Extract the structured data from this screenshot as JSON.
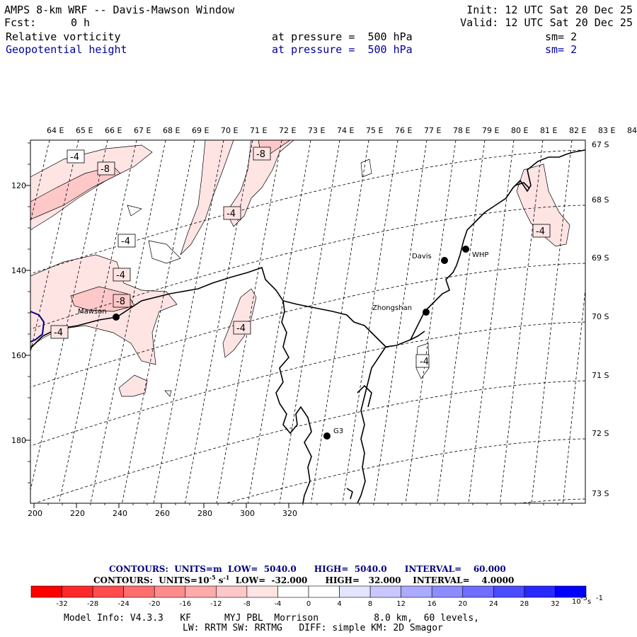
{
  "header": {
    "title": "AMPS 8-km WRF -- Davis-Mawson Window",
    "init": "Init: 12 UTC Sat 20 Dec 25",
    "fcst_label": "Fcst:",
    "fcst_value": "0 h",
    "valid": "Valid: 12 UTC Sat 20 Dec 25",
    "field1": {
      "name": "Relative vorticity",
      "level": "at pressure =  500 hPa",
      "smooth": "sm= 2"
    },
    "field2": {
      "name": "Geopotential height",
      "level": "at pressure =  500 hPa",
      "smooth": "sm= 2"
    }
  },
  "map": {
    "longitude_labels": [
      "64 E",
      "65 E",
      "66 E",
      "67 E",
      "68 E",
      "69 E",
      "70 E",
      "71 E",
      "72 E",
      "73 E",
      "74 E",
      "75 E",
      "76 E",
      "77 E",
      "78 E",
      "79 E",
      "80 E",
      "81 E",
      "82 E",
      "83 E",
      "84 E"
    ],
    "latitude_labels": [
      "67 S",
      "68 S",
      "69 S",
      "70 S",
      "71 S",
      "72 S",
      "73 S"
    ],
    "x_ticks": [
      "200",
      "220",
      "240",
      "260",
      "280",
      "300",
      "320"
    ],
    "y_ticks": [
      "120",
      "140",
      "160",
      "180"
    ],
    "stations": [
      {
        "name": "Mawson"
      },
      {
        "name": "Davis"
      },
      {
        "name": "WHP"
      },
      {
        "name": "Zhongshan"
      },
      {
        "name": "G3"
      }
    ],
    "contour_labels": [
      "-4",
      "-8",
      "-8",
      "-4",
      "-4",
      "-4",
      "-8",
      "-4",
      "-4",
      "-4",
      "-4"
    ],
    "colors": {
      "vort_light": "#ffe4e4",
      "vort_mid": "#ffc8c8",
      "height_line": "#000080"
    }
  },
  "footer": {
    "height_contours": {
      "prefix": "CONTOURS:  UNITS=m  LOW=  5040.0",
      "high": "HIGH=  5040.0",
      "interval": "INTERVAL=    60.000"
    },
    "vort_contours": {
      "prefix": "CONTOURS:  UNITS=10",
      "exp": "-5",
      "unit_s": " s",
      "exp2": "-1",
      "low": "  LOW=  -32.000",
      "high": "HIGH=   32.000",
      "interval": "INTERVAL=    4.0000"
    },
    "colorbar": {
      "labels": [
        "-32",
        "-28",
        "-24",
        "-20",
        "-16",
        "-12",
        "-8",
        "-4",
        "0",
        "4",
        "8",
        "12",
        "16",
        "20",
        "24",
        "28",
        "32"
      ],
      "units": "10",
      "units_exp": "-5",
      "units_s": " s",
      "units_exp2": "-1",
      "colors": [
        "#ff0000",
        "#ff2828",
        "#ff4c4c",
        "#ff6e6e",
        "#ff8c8c",
        "#ffaaaa",
        "#ffc8c8",
        "#ffe4e4",
        "#ffffff",
        "#ffffff",
        "#e4e4ff",
        "#c8c8ff",
        "#aaaaff",
        "#8c8cff",
        "#6e6eff",
        "#4c4cff",
        "#2828ff",
        "#0000ff"
      ]
    },
    "model_info_1": "Model Info: V4.3.3   KF      MYJ PBL  Morrison          8.0 km,  60 levels,",
    "model_info_2": "LW: RRTM SW: RRTMG   DIFF: simple KM: 2D Smagor"
  }
}
